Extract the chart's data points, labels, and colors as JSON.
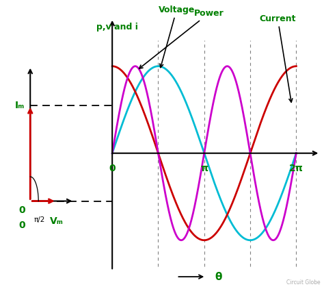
{
  "bg_color": "#ffffff",
  "green": "#008000",
  "red": "#cc0000",
  "magenta": "#cc00cc",
  "cyan": "#00bcd4",
  "black": "#000000",
  "gray": "#808080",
  "voltage_color": "#00bcd4",
  "current_color": "#cc0000",
  "power_color": "#cc00cc",
  "label_voltage": "Voltage",
  "label_current": "Current",
  "label_power": "Power",
  "ylabel": "p,v and i",
  "xlabel": "θ",
  "Im_label": "Iₘ",
  "Vm_label": "Vₘ",
  "angle_label": "π/2",
  "zero_label": "0",
  "pi_label": "π",
  "twopi_label": "2π",
  "circuit_globe": "Circuit Globe"
}
